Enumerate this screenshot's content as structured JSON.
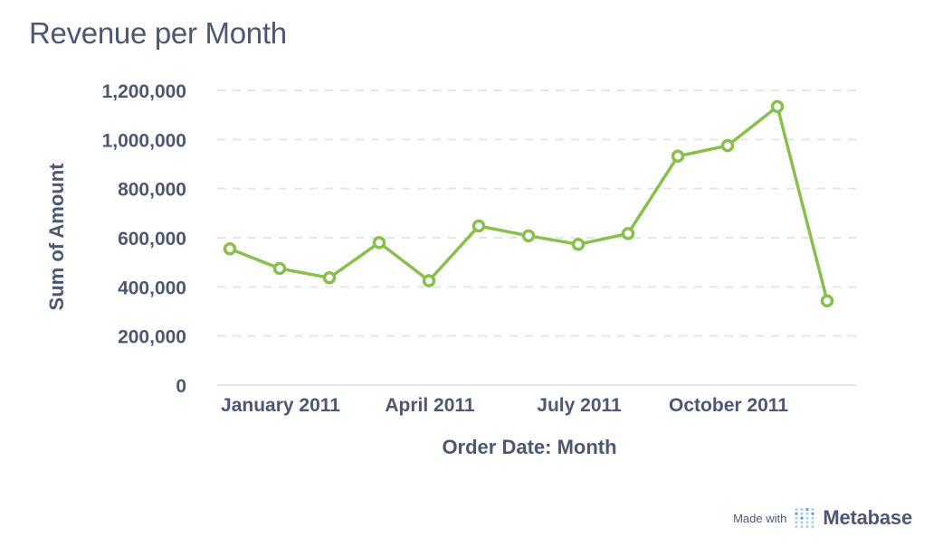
{
  "title": "Revenue per Month",
  "footer": {
    "made_with": "Made with",
    "brand": "Metabase",
    "logo_icon": "metabase-logo-icon"
  },
  "colors": {
    "line": "#88bf4d",
    "text": "#4c5773",
    "grid": "#e6e6e6",
    "logo": "#509ee3"
  },
  "chart_data": {
    "type": "line",
    "title": "Revenue per Month",
    "xlabel": "Order Date: Month",
    "ylabel": "Sum of Amount",
    "x": [
      "2011-01",
      "2011-02",
      "2011-03",
      "2011-04",
      "2011-05",
      "2011-06",
      "2011-07",
      "2011-08",
      "2011-09",
      "2011-10",
      "2011-11",
      "2011-12",
      "2012-01"
    ],
    "x_tick_labels": [
      {
        "x": "2011-01",
        "label": "January 2011"
      },
      {
        "x": "2011-04",
        "label": "April 2011"
      },
      {
        "x": "2011-07",
        "label": "July 2011"
      },
      {
        "x": "2011-10",
        "label": "October 2011"
      }
    ],
    "series": [
      {
        "values": [
          555000,
          475000,
          437000,
          580000,
          425000,
          648000,
          608000,
          573000,
          617000,
          932000,
          975000,
          1134000,
          343000
        ]
      }
    ],
    "ylim": [
      0,
      1200000
    ],
    "y_ticks": [
      0,
      200000,
      400000,
      600000,
      800000,
      1000000,
      1200000
    ],
    "y_tick_labels": [
      "0",
      "200,000",
      "400,000",
      "600,000",
      "800,000",
      "1,000,000",
      "1,200,000"
    ],
    "grid": true,
    "grid_style": "dashed-horizontal",
    "markers": "hollow-circle"
  }
}
